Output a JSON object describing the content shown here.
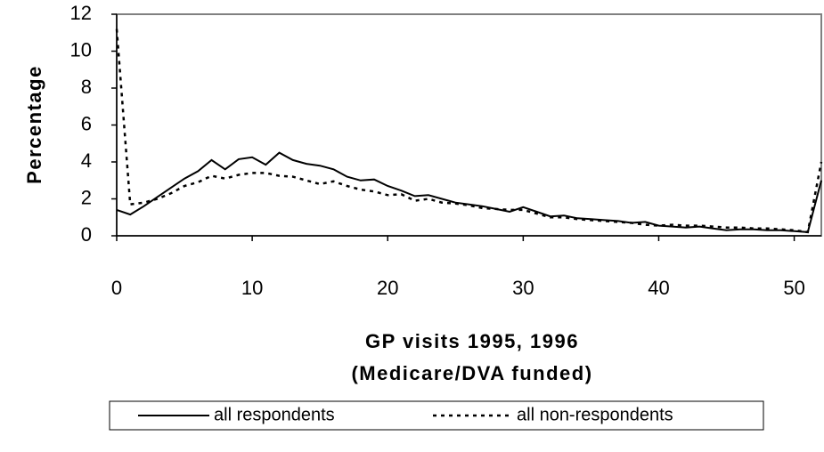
{
  "chart_data": {
    "type": "line",
    "x_label": [
      "GP visits 1995, 1996",
      "(Medicare/DVA funded)"
    ],
    "y_label": "Percentage",
    "x": [
      0,
      1,
      2,
      3,
      4,
      5,
      6,
      7,
      8,
      9,
      10,
      11,
      12,
      13,
      14,
      15,
      16,
      17,
      18,
      19,
      20,
      21,
      22,
      23,
      24,
      25,
      26,
      27,
      28,
      29,
      30,
      31,
      32,
      33,
      34,
      35,
      36,
      37,
      38,
      39,
      40,
      41,
      42,
      43,
      44,
      45,
      46,
      47,
      48,
      49,
      50,
      51,
      52
    ],
    "series": [
      {
        "name": "all respondents",
        "color": "#000000",
        "style": "solid",
        "values": [
          1.4,
          1.15,
          1.6,
          2.1,
          2.6,
          3.1,
          3.5,
          4.1,
          3.6,
          4.15,
          4.25,
          3.85,
          4.5,
          4.1,
          3.9,
          3.8,
          3.6,
          3.2,
          3.0,
          3.05,
          2.7,
          2.45,
          2.15,
          2.2,
          2.0,
          1.8,
          1.7,
          1.6,
          1.45,
          1.3,
          1.55,
          1.3,
          1.05,
          1.1,
          0.95,
          0.9,
          0.85,
          0.8,
          0.7,
          0.75,
          0.55,
          0.5,
          0.45,
          0.5,
          0.4,
          0.3,
          0.35,
          0.35,
          0.3,
          0.3,
          0.25,
          0.2,
          3.0
        ]
      },
      {
        "name": "all non-respondents",
        "color": "#000000",
        "style": "dotted",
        "values": [
          11.2,
          1.7,
          1.8,
          2.0,
          2.3,
          2.7,
          2.9,
          3.25,
          3.1,
          3.3,
          3.4,
          3.4,
          3.25,
          3.2,
          3.0,
          2.8,
          2.95,
          2.7,
          2.5,
          2.4,
          2.2,
          2.25,
          1.9,
          2.0,
          1.8,
          1.75,
          1.65,
          1.5,
          1.45,
          1.4,
          1.4,
          1.2,
          1.0,
          1.0,
          0.9,
          0.85,
          0.8,
          0.75,
          0.7,
          0.6,
          0.55,
          0.6,
          0.55,
          0.55,
          0.5,
          0.45,
          0.45,
          0.4,
          0.4,
          0.35,
          0.3,
          0.2,
          4.0
        ]
      }
    ],
    "xlim": [
      0,
      52
    ],
    "xticks": [
      0,
      10,
      20,
      30,
      40,
      50
    ],
    "ylim": [
      0,
      12
    ],
    "yticks": [
      0,
      2,
      4,
      6,
      8,
      10,
      12
    ],
    "grid": false,
    "legend": "bottom"
  }
}
